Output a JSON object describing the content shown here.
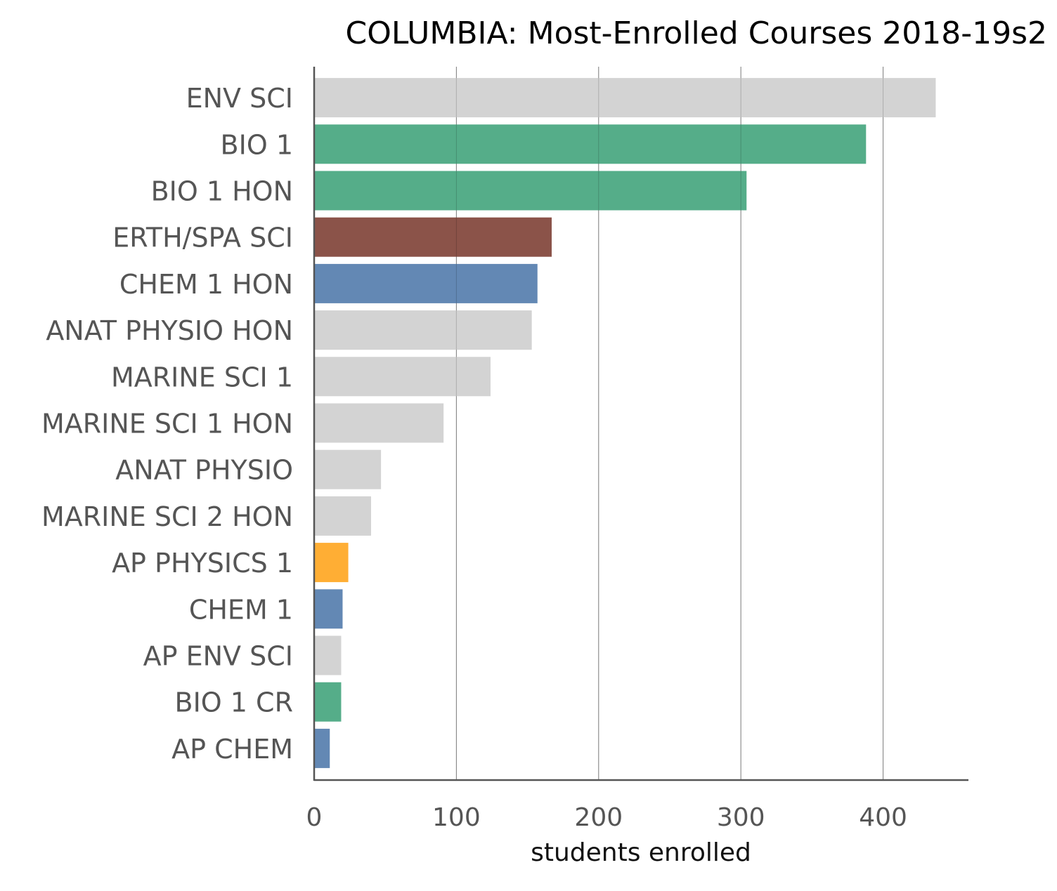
{
  "chart_data": {
    "type": "bar",
    "orientation": "horizontal",
    "title": "COLUMBIA: Most-Enrolled Courses 2018-19s2",
    "xlabel": "students enrolled",
    "ylabel": "",
    "xlim": [
      0,
      460
    ],
    "xticks": [
      0,
      100,
      200,
      300,
      400
    ],
    "xtick_labels": [
      "0",
      "100",
      "200",
      "300",
      "400"
    ],
    "grid": "vertical",
    "categories": [
      "ENV SCI",
      "BIO 1",
      "BIO 1 HON",
      "ERTH/SPA SCI",
      "CHEM 1 HON",
      "ANAT PHYSIO HON",
      "MARINE SCI 1",
      "MARINE SCI 1 HON",
      "ANAT PHYSIO",
      "MARINE SCI 2 HON",
      "AP PHYSICS 1",
      "CHEM 1",
      "AP ENV SCI",
      "BIO 1 CR",
      "AP CHEM"
    ],
    "values": [
      437,
      388,
      304,
      167,
      157,
      153,
      124,
      91,
      47,
      40,
      24,
      20,
      19,
      19,
      11
    ],
    "colors": [
      "#d3d3d3",
      "#55ad89",
      "#55ad89",
      "#8b5349",
      "#6388b4",
      "#d3d3d3",
      "#d3d3d3",
      "#d3d3d3",
      "#d3d3d3",
      "#d3d3d3",
      "#ffae34",
      "#6388b4",
      "#d3d3d3",
      "#55ad89",
      "#6388b4"
    ]
  }
}
